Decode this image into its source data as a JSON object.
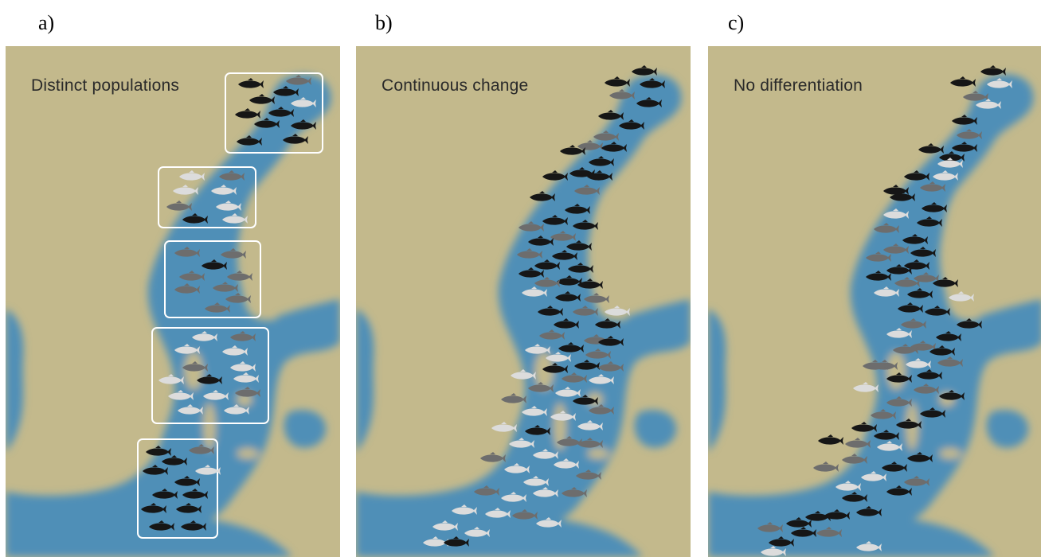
{
  "panels": [
    {
      "letter": "a)",
      "title": "Distinct populations"
    },
    {
      "letter": "b)",
      "title": "Continuous change"
    },
    {
      "letter": "c)",
      "title": "No differentiation"
    }
  ],
  "colors": {
    "land": "#c3b98c",
    "water": "#4f8fb7",
    "fish_dark": "#161616",
    "fish_gray": "#6d6d6d",
    "fish_light": "#dcdcdc",
    "box_outline": "#ffffff"
  },
  "icons": {
    "fish": "fish-icon"
  }
}
